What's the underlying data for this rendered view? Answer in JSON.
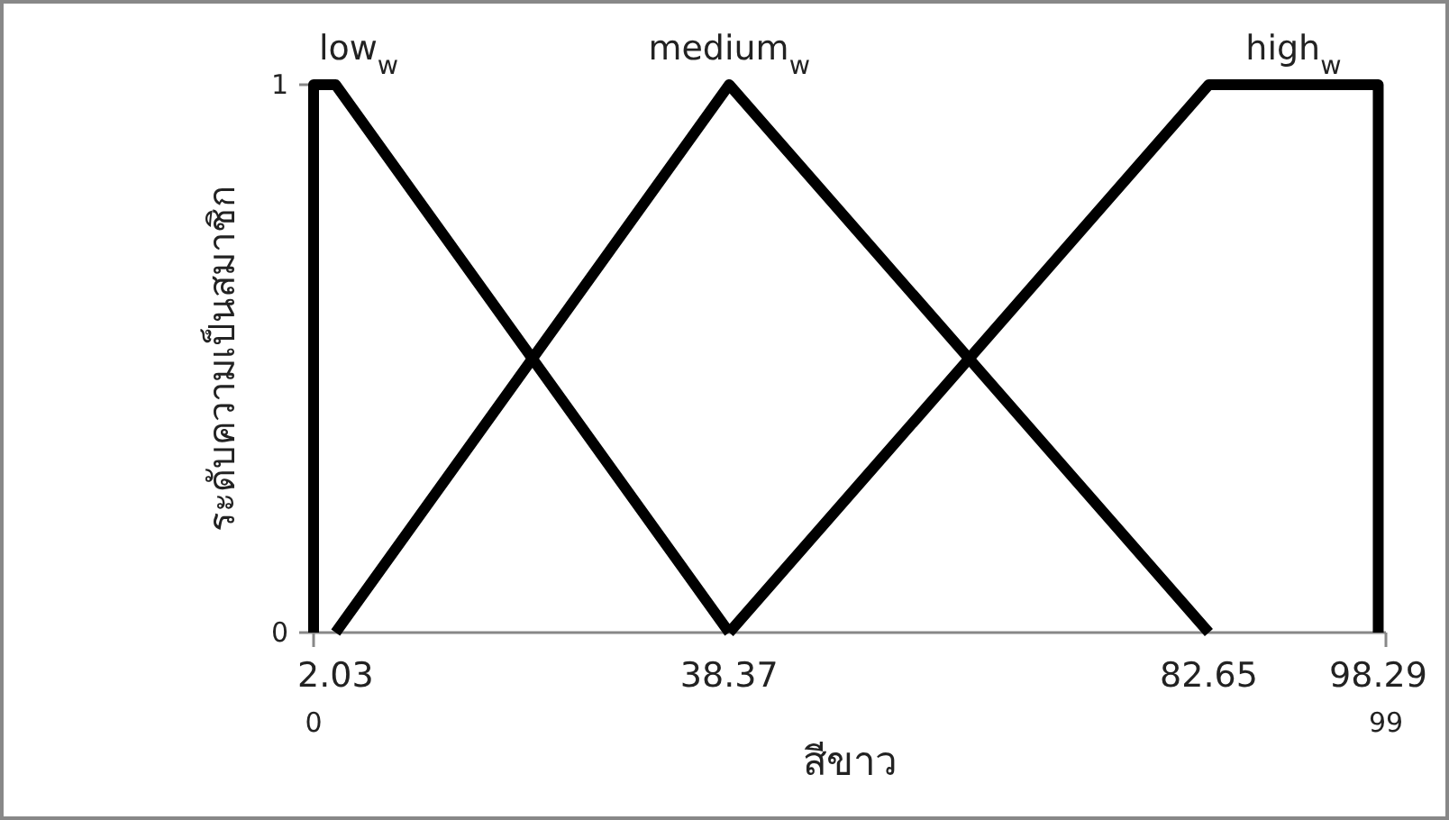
{
  "chart_data": {
    "type": "line",
    "xlabel": "สีขาว",
    "ylabel": "ระดับความเป็นสมาชิก",
    "xlim": [
      0,
      99
    ],
    "ylim": [
      0,
      1
    ],
    "yticks": [
      0,
      1
    ],
    "xticks": [
      0,
      99
    ],
    "annotations": [
      {
        "text": "2.03",
        "x": 2.03,
        "y": 0
      },
      {
        "text": "38.37",
        "x": 38.37,
        "y": 0
      },
      {
        "text": "82.65",
        "x": 82.65,
        "y": 0
      },
      {
        "text": "98.29",
        "x": 98.29,
        "y": 0
      }
    ],
    "grid": false,
    "marker": "none",
    "line_style": "solid",
    "series": [
      {
        "name": "low$_{w}$",
        "color": "#000000",
        "x": [
          0,
          0,
          2.03,
          38.37
        ],
        "values": [
          0,
          1,
          1,
          0
        ]
      },
      {
        "name": "medium$_{w}$",
        "color": "#000000",
        "x": [
          2.03,
          38.37,
          82.65
        ],
        "values": [
          0,
          1,
          0
        ]
      },
      {
        "name": "high$_{w}$",
        "color": "#000000",
        "x": [
          38.37,
          82.65,
          98.29,
          98.29
        ],
        "values": [
          0,
          1,
          1,
          0
        ]
      }
    ]
  }
}
